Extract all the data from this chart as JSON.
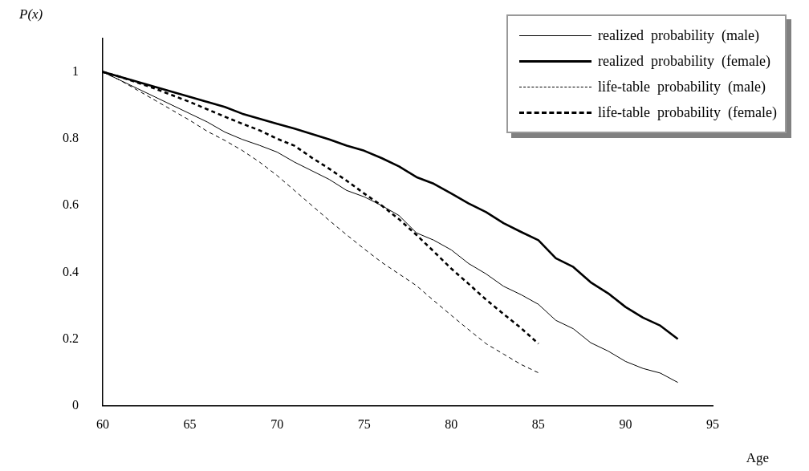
{
  "chart_data": {
    "type": "line",
    "ylabel": "P(x)",
    "xlabel": "Age",
    "xlim": [
      60,
      95
    ],
    "xticks": [
      60,
      65,
      70,
      75,
      80,
      85,
      90,
      95
    ],
    "ylim": [
      0,
      1.1
    ],
    "yticks": [
      0,
      0.2,
      0.4,
      0.6,
      0.8,
      1
    ],
    "grid": false,
    "legend": "top right",
    "marker": "none",
    "x": [
      60,
      61,
      62,
      63,
      64,
      65,
      66,
      67,
      68,
      69,
      70,
      71,
      72,
      73,
      74,
      75,
      76,
      77,
      78,
      79,
      80,
      81,
      82,
      83,
      84,
      85,
      86,
      87,
      88,
      89,
      90,
      91,
      92,
      93
    ],
    "series": [
      {
        "name": "realized  probability  (male)",
        "color": "#000000",
        "line_style": "solid",
        "values": [
          1,
          0.975,
          0.95,
          0.925,
          0.9,
          0.875,
          0.85,
          0.82,
          0.798,
          0.78,
          0.76,
          0.73,
          0.704,
          0.678,
          0.645,
          0.626,
          0.6,
          0.57,
          0.518,
          0.496,
          0.467,
          0.426,
          0.395,
          0.358,
          0.333,
          0.304,
          0.256,
          0.231,
          0.189,
          0.164,
          0.133,
          0.112,
          0.098,
          0.07
        ]
      },
      {
        "name": "realized  probability  (female)",
        "color": "#000000",
        "line_style": "solid",
        "values": [
          1,
          0.985,
          0.97,
          0.955,
          0.94,
          0.925,
          0.91,
          0.895,
          0.875,
          0.86,
          0.845,
          0.83,
          0.814,
          0.798,
          0.779,
          0.764,
          0.742,
          0.717,
          0.685,
          0.665,
          0.636,
          0.606,
          0.58,
          0.547,
          0.521,
          0.496,
          0.442,
          0.416,
          0.37,
          0.337,
          0.296,
          0.264,
          0.24,
          0.2
        ]
      },
      {
        "name": "life-table  probability  (male)",
        "color": "#000000",
        "line_style": "dashed",
        "values": [
          1,
          0.975,
          0.945,
          0.915,
          0.885,
          0.855,
          0.822,
          0.795,
          0.765,
          0.73,
          0.69,
          0.645,
          0.6,
          0.555,
          0.512,
          0.47,
          0.43,
          0.395,
          0.36,
          0.315,
          0.271,
          0.228,
          0.186,
          0.155,
          0.124,
          0.099,
          null,
          null,
          null,
          null,
          null,
          null,
          null,
          null
        ]
      },
      {
        "name": "life-table  probability  (female)",
        "color": "#000000",
        "line_style": "dashed",
        "values": [
          1,
          0.985,
          0.968,
          0.95,
          0.93,
          0.91,
          0.888,
          0.866,
          0.845,
          0.825,
          0.8,
          0.779,
          0.743,
          0.71,
          0.674,
          0.636,
          0.6,
          0.559,
          0.512,
          0.462,
          0.411,
          0.365,
          0.318,
          0.275,
          0.233,
          0.186,
          null,
          null,
          null,
          null,
          null,
          null,
          null,
          null
        ]
      }
    ]
  }
}
